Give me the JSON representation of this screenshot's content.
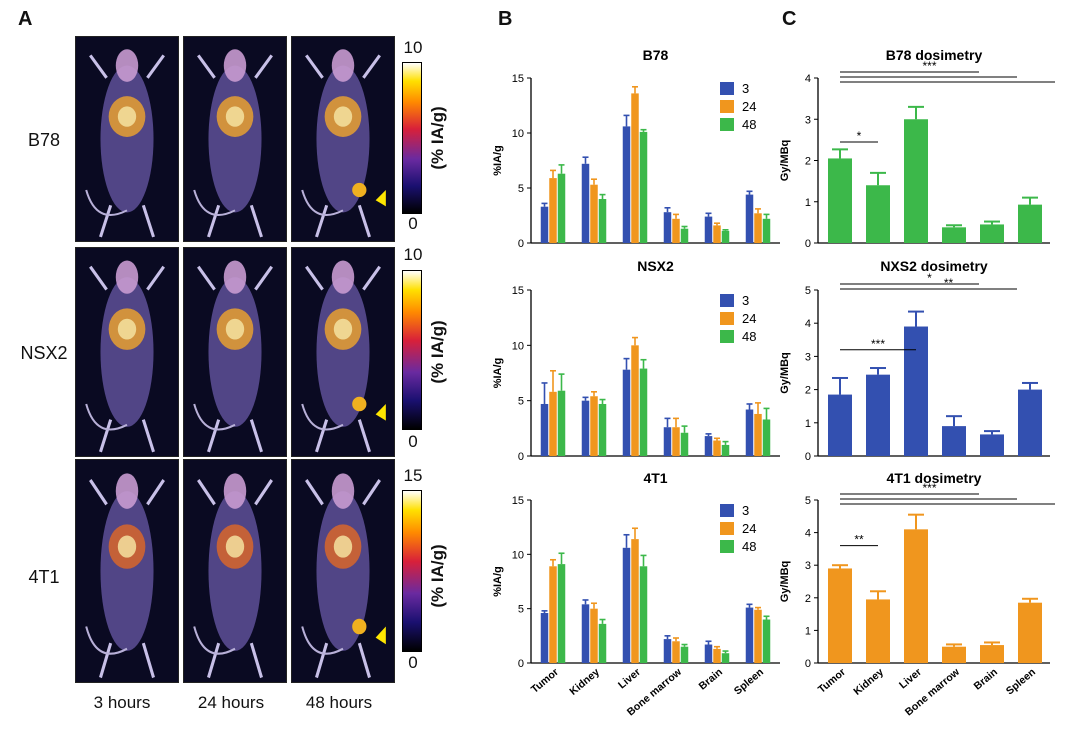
{
  "panels": {
    "a": "A",
    "b": "B",
    "c": "C"
  },
  "imaging": {
    "rows": [
      "B78",
      "NSX2",
      "4T1"
    ],
    "times": [
      "3 hours",
      "24 hours",
      "48 hours"
    ],
    "colorbars": [
      {
        "max": "10",
        "min": "0",
        "unit": "(% IA/g)"
      },
      {
        "max": "10",
        "min": "0",
        "unit": "(% IA/g)"
      },
      {
        "max": "15",
        "min": "0",
        "unit": "(% IA/g)"
      }
    ]
  },
  "chart_data": [
    {
      "id": "b78-uptake",
      "type": "bar",
      "title": "B78",
      "ylabel": "%IA/g",
      "ylim": [
        0,
        15
      ],
      "yticks": [
        "0",
        "5",
        "10",
        "15"
      ],
      "categories": [
        "Tumor",
        "Kidney",
        "Liver",
        "Bone marrow",
        "Brain",
        "Spleen"
      ],
      "show_xlabels": false,
      "series": [
        {
          "name": "3",
          "values": [
            3.3,
            7.2,
            10.6,
            2.8,
            2.4,
            4.4
          ],
          "errors": [
            0.3,
            0.6,
            1.0,
            0.4,
            0.3,
            0.3
          ]
        },
        {
          "name": "24",
          "values": [
            5.9,
            5.3,
            13.6,
            2.2,
            1.6,
            2.7
          ],
          "errors": [
            0.7,
            0.5,
            0.6,
            0.4,
            0.2,
            0.4
          ]
        },
        {
          "name": "48",
          "values": [
            6.3,
            4.0,
            10.1,
            1.3,
            1.1,
            2.2
          ],
          "errors": [
            0.8,
            0.4,
            0.2,
            0.2,
            0.1,
            0.4
          ]
        }
      ]
    },
    {
      "id": "nsx2-uptake",
      "type": "bar",
      "title": "NSX2",
      "ylabel": "%IA/g",
      "ylim": [
        0,
        15
      ],
      "yticks": [
        "0",
        "5",
        "10",
        "15"
      ],
      "categories": [
        "Tumor",
        "Kidney",
        "Liver",
        "Bone marrow",
        "Brain",
        "Spleen"
      ],
      "show_xlabels": false,
      "series": [
        {
          "name": "3",
          "values": [
            4.7,
            5.0,
            7.8,
            2.6,
            1.8,
            4.2
          ],
          "errors": [
            1.9,
            0.3,
            1.0,
            0.8,
            0.2,
            0.5
          ]
        },
        {
          "name": "24",
          "values": [
            5.8,
            5.4,
            10.0,
            2.6,
            1.4,
            3.8
          ],
          "errors": [
            1.9,
            0.4,
            0.7,
            0.8,
            0.2,
            1.0
          ]
        },
        {
          "name": "48",
          "values": [
            5.9,
            4.7,
            7.9,
            2.1,
            1.0,
            3.3
          ],
          "errors": [
            1.5,
            0.4,
            0.8,
            0.6,
            0.3,
            1.0
          ]
        }
      ]
    },
    {
      "id": "4t1-uptake",
      "type": "bar",
      "title": "4T1",
      "ylabel": "%IA/g",
      "ylim": [
        0,
        15
      ],
      "yticks": [
        "0",
        "5",
        "10",
        "15"
      ],
      "categories": [
        "Tumor",
        "Kidney",
        "Liver",
        "Bone marrow",
        "Brain",
        "Spleen"
      ],
      "show_xlabels": true,
      "series": [
        {
          "name": "3",
          "values": [
            4.6,
            5.4,
            10.6,
            2.2,
            1.7,
            5.1
          ],
          "errors": [
            0.2,
            0.4,
            1.2,
            0.3,
            0.3,
            0.3
          ]
        },
        {
          "name": "24",
          "values": [
            8.9,
            5.0,
            11.4,
            2.0,
            1.3,
            4.9
          ],
          "errors": [
            0.6,
            0.5,
            1.0,
            0.3,
            0.2,
            0.2
          ]
        },
        {
          "name": "48",
          "values": [
            9.1,
            3.6,
            8.9,
            1.5,
            0.9,
            4.0
          ],
          "errors": [
            1.0,
            0.4,
            1.0,
            0.2,
            0.2,
            0.3
          ]
        }
      ]
    },
    {
      "id": "b78-dosimetry",
      "type": "bar",
      "title": "B78 dosimetry",
      "ylabel": "Gy/MBq",
      "ylim": [
        0,
        4
      ],
      "yticks": [
        "0",
        "1",
        "2",
        "3",
        "4"
      ],
      "color": "#3cb84a",
      "categories": [
        "Tumor",
        "Kidney",
        "Liver",
        "Bone marrow",
        "Brain",
        "Spleen"
      ],
      "show_xlabels": false,
      "values": [
        2.05,
        1.4,
        3.0,
        0.38,
        0.45,
        0.93
      ],
      "errors": [
        0.22,
        0.3,
        0.3,
        0.05,
        0.07,
        0.17
      ],
      "sig": [
        {
          "label": "*",
          "from": 0,
          "to": 1,
          "short": true
        },
        {
          "label": "***",
          "from": 0,
          "to": 3
        },
        {
          "label": "",
          "from": 0,
          "to": 4
        },
        {
          "label": "",
          "from": 0,
          "to": 5
        }
      ]
    },
    {
      "id": "nsx2-dosimetry",
      "type": "bar",
      "title": "NXS2 dosimetry",
      "ylabel": "Gy/MBq",
      "ylim": [
        0,
        5
      ],
      "yticks": [
        "0",
        "1",
        "2",
        "3",
        "4",
        "5"
      ],
      "color": "#3350b0",
      "categories": [
        "Tumor",
        "Kidney",
        "Liver",
        "Bone marrow",
        "Brain",
        "Spleen"
      ],
      "show_xlabels": false,
      "values": [
        1.85,
        2.45,
        3.9,
        0.9,
        0.65,
        2.0
      ],
      "errors": [
        0.5,
        0.2,
        0.45,
        0.3,
        0.1,
        0.2
      ],
      "sig": [
        {
          "label": "***",
          "from": 0,
          "to": 2,
          "short": true
        },
        {
          "label": "*",
          "from": 0,
          "to": 3
        },
        {
          "label": "**",
          "from": 0,
          "to": 4
        }
      ]
    },
    {
      "id": "4t1-dosimetry",
      "type": "bar",
      "title": "4T1 dosimetry",
      "ylabel": "Gy/MBq",
      "ylim": [
        0,
        5
      ],
      "yticks": [
        "0",
        "1",
        "2",
        "3",
        "4",
        "5"
      ],
      "color": "#f0961e",
      "categories": [
        "Tumor",
        "Kidney",
        "Liver",
        "Bone marrow",
        "Brain",
        "Spleen"
      ],
      "show_xlabels": true,
      "values": [
        2.9,
        1.95,
        4.1,
        0.5,
        0.55,
        1.85
      ],
      "errors": [
        0.1,
        0.25,
        0.45,
        0.07,
        0.08,
        0.12
      ],
      "sig": [
        {
          "label": "**",
          "from": 0,
          "to": 1,
          "short": true
        },
        {
          "label": "***",
          "from": 0,
          "to": 3
        },
        {
          "label": "",
          "from": 0,
          "to": 4
        },
        {
          "label": "",
          "from": 0,
          "to": 5
        }
      ]
    }
  ],
  "colors": {
    "series": [
      "#3350b0",
      "#f0961e",
      "#3cb84a"
    ]
  }
}
